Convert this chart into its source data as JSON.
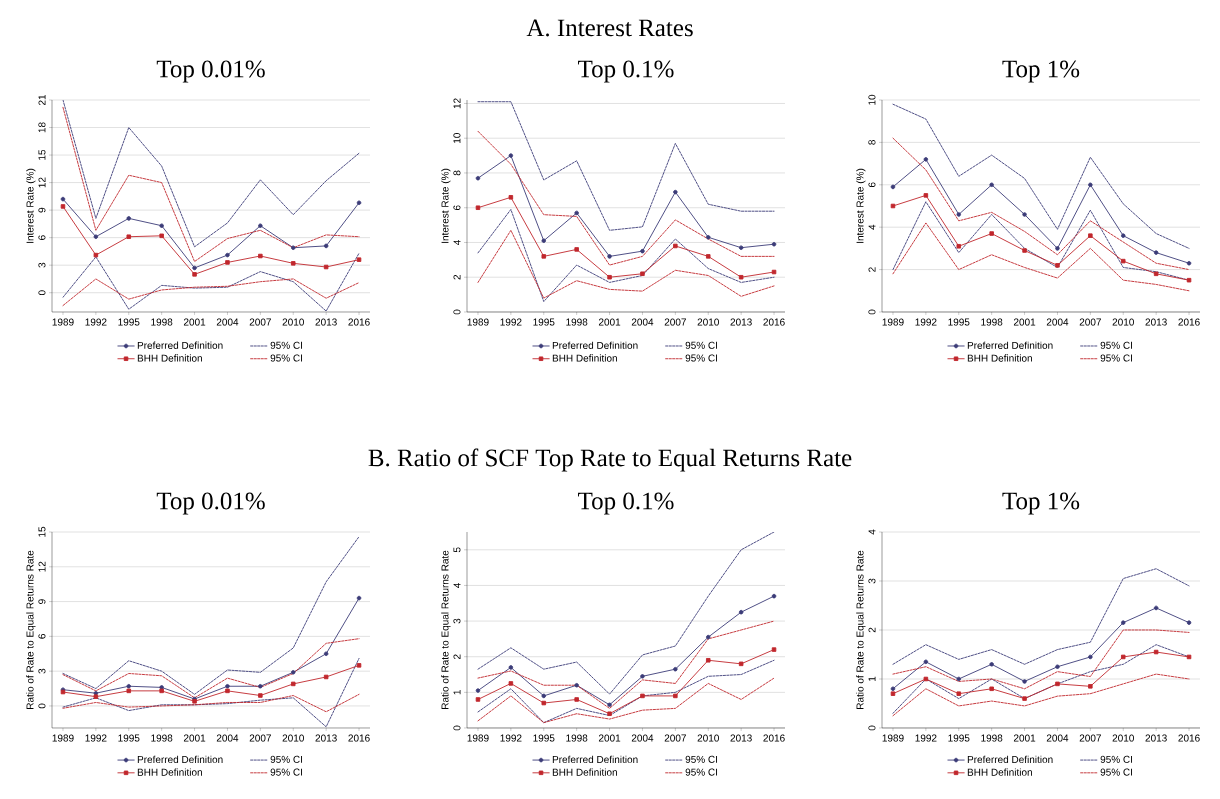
{
  "chart_data": [
    {
      "type": "line",
      "title": "Top 0.01%",
      "annotations": [
        "A. Interest Rates"
      ],
      "ylabel": "Interest Rate (%)",
      "x": [
        1989,
        1992,
        1995,
        1998,
        2001,
        2004,
        2007,
        2010,
        2013,
        2016
      ],
      "xlim": [
        1988,
        2017
      ],
      "xticks": [
        1989,
        1992,
        1995,
        1998,
        2001,
        2004,
        2007,
        2010,
        2013,
        2016
      ],
      "ylim": [
        -2.1,
        21
      ],
      "yticks": [
        0,
        3,
        6,
        9,
        12,
        15,
        18,
        21
      ],
      "grid": "y",
      "legend": "bottom",
      "series": [
        {
          "name": "Preferred Definition",
          "color": "#3c3c78",
          "marker": "circle",
          "line_style": "solid",
          "values": [
            10.2,
            6.1,
            8.1,
            7.3,
            2.7,
            4.1,
            7.3,
            4.9,
            5.1,
            9.8
          ]
        },
        {
          "name": "95% CI",
          "color": "#3c3c78",
          "marker": "none",
          "line_style": "dashed",
          "values": [
            21.0,
            8.1,
            18.0,
            13.8,
            5.0,
            7.6,
            12.3,
            8.5,
            12.2,
            15.2
          ]
        },
        {
          "color": "#3c3c78",
          "marker": "none",
          "line_style": "dashed",
          "values": [
            -0.5,
            3.9,
            -1.8,
            0.8,
            0.5,
            0.6,
            2.3,
            1.2,
            -2.0,
            4.3
          ]
        },
        {
          "name": "BHH Definition",
          "color": "#c1272d",
          "marker": "square",
          "line_style": "solid",
          "values": [
            9.4,
            4.1,
            6.1,
            6.2,
            2.0,
            3.3,
            4.0,
            3.2,
            2.8,
            3.6
          ]
        },
        {
          "name": "95% CI",
          "color": "#c1272d",
          "marker": "none",
          "line_style": "dashed",
          "values": [
            20.2,
            6.8,
            12.8,
            12.0,
            3.4,
            5.9,
            6.8,
            4.9,
            6.3,
            6.1
          ]
        },
        {
          "color": "#c1272d",
          "marker": "none",
          "line_style": "dashed",
          "values": [
            -1.4,
            1.5,
            -0.7,
            0.3,
            0.6,
            0.7,
            1.2,
            1.5,
            -0.6,
            1.1
          ]
        }
      ]
    },
    {
      "type": "line",
      "title": "Top 0.1%",
      "ylabel": "Interest Rate (%)",
      "x": [
        1989,
        1992,
        1995,
        1998,
        2001,
        2004,
        2007,
        2010,
        2013,
        2016
      ],
      "xlim": [
        1988,
        2017
      ],
      "xticks": [
        1989,
        1992,
        1995,
        1998,
        2001,
        2004,
        2007,
        2010,
        2013,
        2016
      ],
      "ylim": [
        0,
        12.2
      ],
      "yticks": [
        0,
        2,
        4,
        6,
        8,
        10,
        12
      ],
      "grid": "y",
      "legend": "bottom",
      "series": [
        {
          "name": "Preferred Definition",
          "color": "#3c3c78",
          "marker": "circle",
          "line_style": "solid",
          "values": [
            7.7,
            9.0,
            4.1,
            5.7,
            3.2,
            3.5,
            6.9,
            4.3,
            3.7,
            3.9
          ]
        },
        {
          "name": "95% CI",
          "color": "#3c3c78",
          "marker": "none",
          "line_style": "dashed",
          "values": [
            12.1,
            12.1,
            7.6,
            8.7,
            4.7,
            4.9,
            9.7,
            6.2,
            5.8,
            5.8
          ]
        },
        {
          "color": "#3c3c78",
          "marker": "none",
          "line_style": "dashed",
          "values": [
            3.4,
            5.9,
            0.6,
            2.7,
            1.7,
            2.1,
            4.2,
            2.5,
            1.7,
            2.0
          ]
        },
        {
          "name": "BHH Definition",
          "color": "#c1272d",
          "marker": "square",
          "line_style": "solid",
          "values": [
            6.0,
            6.6,
            3.2,
            3.6,
            2.0,
            2.2,
            3.8,
            3.2,
            2.0,
            2.3
          ]
        },
        {
          "name": "95% CI",
          "color": "#c1272d",
          "marker": "none",
          "line_style": "dashed",
          "values": [
            10.4,
            8.5,
            5.6,
            5.5,
            2.7,
            3.2,
            5.3,
            4.2,
            3.2,
            3.2
          ]
        },
        {
          "color": "#c1272d",
          "marker": "none",
          "line_style": "dashed",
          "values": [
            1.7,
            4.7,
            0.8,
            1.8,
            1.3,
            1.2,
            2.4,
            2.1,
            0.9,
            1.5
          ]
        }
      ]
    },
    {
      "type": "line",
      "title": "Top 1%",
      "ylabel": "Interest Rate (%)",
      "x": [
        1989,
        1992,
        1995,
        1998,
        2001,
        2004,
        2007,
        2010,
        2013,
        2016
      ],
      "xlim": [
        1988,
        2017
      ],
      "xticks": [
        1989,
        1992,
        1995,
        1998,
        2001,
        2004,
        2007,
        2010,
        2013,
        2016
      ],
      "ylim": [
        0,
        10
      ],
      "yticks": [
        0,
        2,
        4,
        6,
        8,
        10
      ],
      "grid": "y",
      "legend": "bottom",
      "series": [
        {
          "name": "Preferred Definition",
          "color": "#3c3c78",
          "marker": "circle",
          "line_style": "solid",
          "values": [
            5.9,
            7.2,
            4.6,
            6.0,
            4.6,
            3.0,
            6.0,
            3.6,
            2.8,
            2.3
          ]
        },
        {
          "name": "95% CI",
          "color": "#3c3c78",
          "marker": "none",
          "line_style": "dashed",
          "values": [
            9.8,
            9.1,
            6.4,
            7.4,
            6.3,
            3.9,
            7.3,
            5.1,
            3.7,
            3.0
          ]
        },
        {
          "color": "#3c3c78",
          "marker": "none",
          "line_style": "dashed",
          "values": [
            2.0,
            5.2,
            2.8,
            4.6,
            3.0,
            2.1,
            4.8,
            2.1,
            1.9,
            1.5
          ]
        },
        {
          "name": "BHH Definition",
          "color": "#c1272d",
          "marker": "square",
          "line_style": "solid",
          "values": [
            5.0,
            5.5,
            3.1,
            3.7,
            2.9,
            2.2,
            3.6,
            2.4,
            1.8,
            1.5
          ]
        },
        {
          "name": "95% CI",
          "color": "#c1272d",
          "marker": "none",
          "line_style": "dashed",
          "values": [
            8.2,
            6.7,
            4.3,
            4.7,
            3.8,
            2.7,
            4.3,
            3.3,
            2.3,
            2.0
          ]
        },
        {
          "color": "#c1272d",
          "marker": "none",
          "line_style": "dashed",
          "values": [
            1.8,
            4.2,
            2.0,
            2.7,
            2.1,
            1.6,
            3.0,
            1.5,
            1.3,
            1.0
          ]
        }
      ]
    },
    {
      "type": "line",
      "title": "Top 0.01%",
      "annotations": [
        "B. Ratio of SCF Top Rate to Equal Returns Rate"
      ],
      "ylabel": "Ratio of Rate to Equal Returns Rate",
      "x": [
        1989,
        1992,
        1995,
        1998,
        2001,
        2004,
        2007,
        2010,
        2013,
        2016
      ],
      "xlim": [
        1988,
        2017
      ],
      "xticks": [
        1989,
        1992,
        1995,
        1998,
        2001,
        2004,
        2007,
        2010,
        2013,
        2016
      ],
      "ylim": [
        -1.9,
        15
      ],
      "yticks": [
        0,
        3,
        6,
        9,
        12,
        15
      ],
      "grid": "y",
      "legend": "bottom",
      "series": [
        {
          "name": "Preferred Definition",
          "color": "#3c3c78",
          "marker": "circle",
          "line_style": "solid",
          "values": [
            1.4,
            1.1,
            1.7,
            1.6,
            0.6,
            1.7,
            1.7,
            2.9,
            4.5,
            9.3
          ]
        },
        {
          "name": "95% CI",
          "color": "#3c3c78",
          "marker": "none",
          "line_style": "dashed",
          "values": [
            2.8,
            1.5,
            3.9,
            3.0,
            1.0,
            3.1,
            2.9,
            5.0,
            10.7,
            14.6
          ]
        },
        {
          "color": "#3c3c78",
          "marker": "none",
          "line_style": "dashed",
          "values": [
            -0.1,
            0.7,
            -0.4,
            0.1,
            0.1,
            0.2,
            0.5,
            0.7,
            -1.8,
            4.1
          ]
        },
        {
          "name": "BHH Definition",
          "color": "#c1272d",
          "marker": "square",
          "line_style": "solid",
          "values": [
            1.2,
            0.8,
            1.3,
            1.3,
            0.4,
            1.3,
            0.9,
            1.9,
            2.5,
            3.5
          ]
        },
        {
          "name": "95% CI",
          "color": "#c1272d",
          "marker": "none",
          "line_style": "dashed",
          "values": [
            2.7,
            1.3,
            2.8,
            2.6,
            0.7,
            2.4,
            1.6,
            2.8,
            5.4,
            5.8
          ]
        },
        {
          "color": "#c1272d",
          "marker": "none",
          "line_style": "dashed",
          "values": [
            -0.2,
            0.3,
            -0.1,
            0.0,
            0.1,
            0.3,
            0.3,
            0.9,
            -0.5,
            1.0
          ]
        }
      ]
    },
    {
      "type": "line",
      "title": "Top 0.1%",
      "ylabel": "Ratio of Rate to Equal Returns Rate",
      "x": [
        1989,
        1992,
        1995,
        1998,
        2001,
        2004,
        2007,
        2010,
        2013,
        2016
      ],
      "xlim": [
        1988,
        2017
      ],
      "xticks": [
        1989,
        1992,
        1995,
        1998,
        2001,
        2004,
        2007,
        2010,
        2013,
        2016
      ],
      "ylim": [
        0,
        5.5
      ],
      "yticks": [
        0,
        1,
        2,
        3,
        4,
        5
      ],
      "grid": "y",
      "legend": "bottom",
      "series": [
        {
          "name": "Preferred Definition",
          "color": "#3c3c78",
          "marker": "circle",
          "line_style": "solid",
          "values": [
            1.05,
            1.7,
            0.9,
            1.2,
            0.65,
            1.45,
            1.65,
            2.55,
            3.25,
            3.7
          ]
        },
        {
          "name": "95% CI",
          "color": "#3c3c78",
          "marker": "none",
          "line_style": "dashed",
          "values": [
            1.65,
            2.25,
            1.65,
            1.85,
            0.95,
            2.05,
            2.3,
            3.7,
            5.0,
            5.5
          ]
        },
        {
          "color": "#3c3c78",
          "marker": "none",
          "line_style": "dashed",
          "values": [
            0.45,
            1.1,
            0.15,
            0.55,
            0.35,
            0.9,
            1.0,
            1.45,
            1.5,
            1.9
          ]
        },
        {
          "name": "BHH Definition",
          "color": "#c1272d",
          "marker": "square",
          "line_style": "solid",
          "values": [
            0.8,
            1.25,
            0.7,
            0.8,
            0.4,
            0.9,
            0.9,
            1.9,
            1.8,
            2.2
          ]
        },
        {
          "name": "95% CI",
          "color": "#c1272d",
          "marker": "none",
          "line_style": "dashed",
          "values": [
            1.4,
            1.6,
            1.2,
            1.2,
            0.55,
            1.35,
            1.25,
            2.5,
            2.75,
            3.0
          ]
        },
        {
          "color": "#c1272d",
          "marker": "none",
          "line_style": "dashed",
          "values": [
            0.2,
            0.9,
            0.15,
            0.4,
            0.25,
            0.5,
            0.55,
            1.25,
            0.8,
            1.4
          ]
        }
      ]
    },
    {
      "type": "line",
      "title": "Top 1%",
      "ylabel": "Ratio of Rate to Equal Returns Rate",
      "x": [
        1989,
        1992,
        1995,
        1998,
        2001,
        2004,
        2007,
        2010,
        2013,
        2016
      ],
      "xlim": [
        1988,
        2017
      ],
      "xticks": [
        1989,
        1992,
        1995,
        1998,
        2001,
        2004,
        2007,
        2010,
        2013,
        2016
      ],
      "ylim": [
        0,
        4
      ],
      "yticks": [
        0,
        1,
        2,
        3,
        4
      ],
      "grid": "y",
      "legend": "bottom",
      "series": [
        {
          "name": "Preferred Definition",
          "color": "#3c3c78",
          "marker": "circle",
          "line_style": "solid",
          "values": [
            0.8,
            1.35,
            1.0,
            1.3,
            0.95,
            1.25,
            1.45,
            2.15,
            2.45,
            2.15
          ]
        },
        {
          "name": "95% CI",
          "color": "#3c3c78",
          "marker": "none",
          "line_style": "dashed",
          "values": [
            1.3,
            1.7,
            1.4,
            1.6,
            1.3,
            1.6,
            1.75,
            3.05,
            3.25,
            2.9
          ]
        },
        {
          "color": "#3c3c78",
          "marker": "none",
          "line_style": "dashed",
          "values": [
            0.3,
            1.0,
            0.6,
            1.0,
            0.6,
            0.9,
            1.15,
            1.3,
            1.7,
            1.45
          ]
        },
        {
          "name": "BHH Definition",
          "color": "#c1272d",
          "marker": "square",
          "line_style": "solid",
          "values": [
            0.7,
            1.0,
            0.7,
            0.8,
            0.6,
            0.9,
            0.85,
            1.45,
            1.55,
            1.45
          ]
        },
        {
          "name": "95% CI",
          "color": "#c1272d",
          "marker": "none",
          "line_style": "dashed",
          "values": [
            1.1,
            1.25,
            0.95,
            1.0,
            0.8,
            1.15,
            1.05,
            2.0,
            2.0,
            1.95
          ]
        },
        {
          "color": "#c1272d",
          "marker": "none",
          "line_style": "dashed",
          "values": [
            0.25,
            0.8,
            0.45,
            0.55,
            0.45,
            0.65,
            0.7,
            0.9,
            1.1,
            1.0
          ]
        }
      ]
    }
  ]
}
